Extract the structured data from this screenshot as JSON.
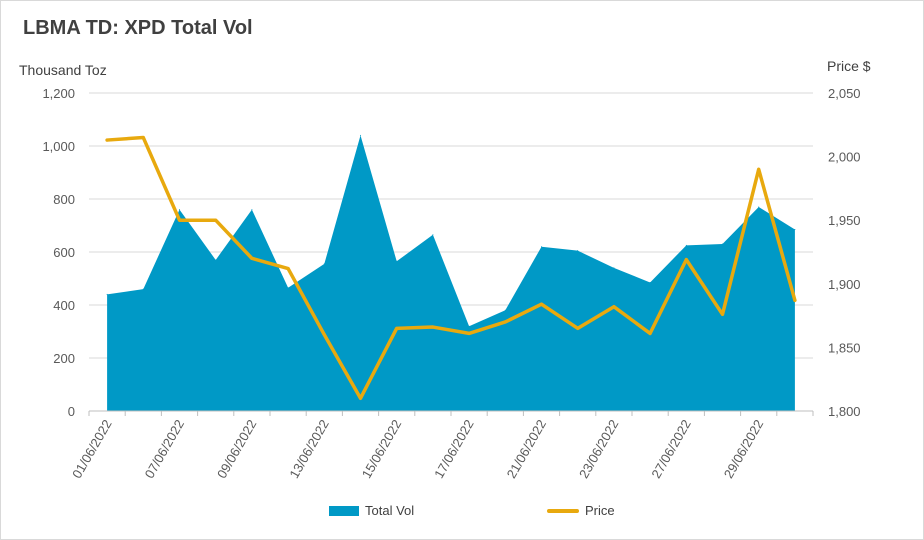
{
  "chart_data": {
    "type": "area",
    "title": "LBMA TD: XPD Total Vol",
    "y_left_label": "Thousand Toz",
    "y_right_label": "Price $",
    "y_left_lim": [
      0,
      1200
    ],
    "y_left_ticks": [
      "0",
      "200",
      "400",
      "600",
      "800",
      "1,000",
      "1,200"
    ],
    "y_right_lim": [
      1800,
      2050
    ],
    "y_right_ticks": [
      "1,800",
      "1,850",
      "1,900",
      "1,950",
      "2,000",
      "2,050"
    ],
    "x_tick_labels": [
      "01/06/2022",
      "07/06/2022",
      "09/06/2022",
      "13/06/2022",
      "15/06/2022",
      "17/06/2022",
      "21/06/2022",
      "23/06/2022",
      "27/06/2022",
      "29/06/2022"
    ],
    "grid": "horizontal",
    "legend_position": "bottom",
    "series": [
      {
        "name": "Total Vol",
        "kind": "area",
        "axis": "left",
        "color": "#0099c6",
        "values": [
          440,
          460,
          760,
          570,
          760,
          465,
          555,
          1040,
          565,
          665,
          320,
          380,
          620,
          605,
          540,
          485,
          625,
          630,
          770,
          685
        ]
      },
      {
        "name": "Price",
        "kind": "line",
        "axis": "right",
        "color": "#e8a90e",
        "values": [
          2013,
          2015,
          1950,
          1950,
          1920,
          1912,
          1860,
          1810,
          1865,
          1866,
          1861,
          1870,
          1884,
          1865,
          1882,
          1861,
          1919,
          1876,
          1990,
          1887
        ]
      }
    ]
  }
}
